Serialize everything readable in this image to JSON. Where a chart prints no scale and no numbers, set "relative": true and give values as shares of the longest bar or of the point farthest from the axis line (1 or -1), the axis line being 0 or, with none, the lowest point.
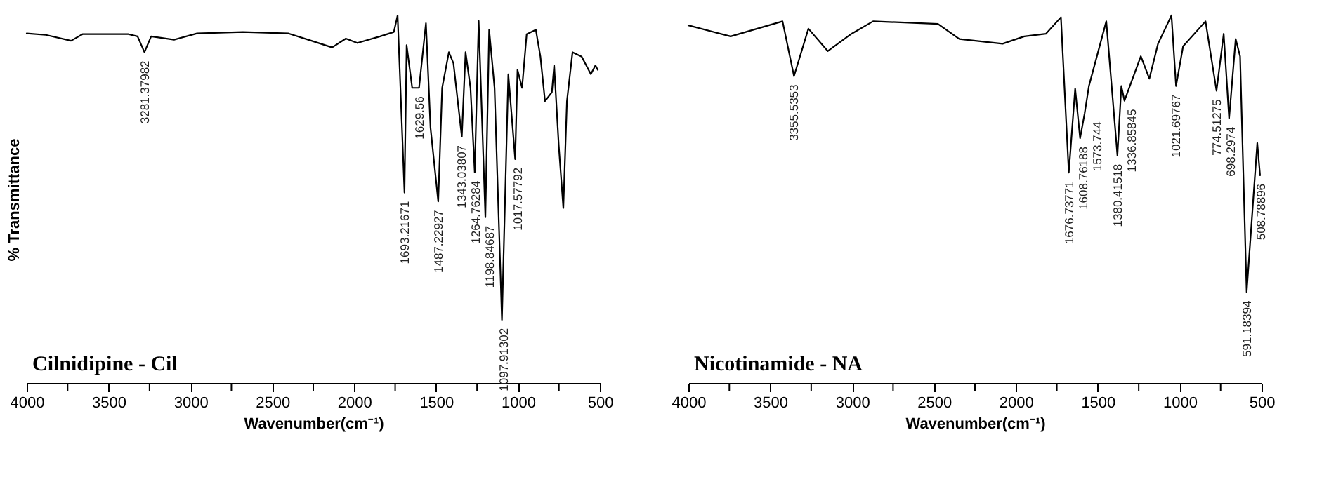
{
  "chart_data": [
    {
      "type": "line",
      "title": "Cilnidipine - Cil",
      "xlabel": "Wavenumber(cm⁻¹)",
      "ylabel": "% Transmittance",
      "relative": true,
      "color": "#000000",
      "xlim": [
        4000,
        500
      ],
      "xticks": [
        4000,
        {
          "value": 3750,
          "label": null
        },
        3500,
        {
          "value": 3250,
          "label": null
        },
        3000,
        {
          "value": 2750,
          "label": null
        },
        2500,
        {
          "value": 2250,
          "label": null
        },
        2000,
        {
          "value": 1750,
          "label": null
        },
        1500,
        {
          "value": 1250,
          "label": null
        },
        1000,
        {
          "value": 750,
          "label": null
        },
        500
      ],
      "x": [
        4000,
        3883,
        3729,
        3659,
        3379,
        3323,
        3281,
        3240,
        3100,
        2960,
        2680,
        2401,
        2261,
        2135,
        2051,
        1981,
        1842,
        1758,
        1735,
        1693,
        1680,
        1646,
        1604,
        1562,
        1534,
        1487,
        1463,
        1422,
        1394,
        1343,
        1320,
        1290,
        1264,
        1240,
        1199,
        1176,
        1143,
        1098,
        1059,
        1017,
        1003,
        975,
        947,
        891,
        863,
        835,
        793,
        779,
        751,
        723,
        701,
        667,
        611,
        555,
        527,
        513
      ],
      "values": [
        0.951,
        0.947,
        0.931,
        0.949,
        0.949,
        0.943,
        0.9,
        0.943,
        0.934,
        0.951,
        0.955,
        0.951,
        0.931,
        0.913,
        0.937,
        0.925,
        0.943,
        0.955,
        1.0,
        0.518,
        0.919,
        0.803,
        0.803,
        0.979,
        0.694,
        0.494,
        0.803,
        0.9,
        0.87,
        0.67,
        0.9,
        0.803,
        0.573,
        0.985,
        0.451,
        0.961,
        0.803,
        0.172,
        0.84,
        0.609,
        0.852,
        0.803,
        0.949,
        0.961,
        0.888,
        0.767,
        0.791,
        0.864,
        0.646,
        0.476,
        0.767,
        0.9,
        0.888,
        0.84,
        0.864,
        0.852
      ],
      "annotations": [
        {
          "text": "3281.37982",
          "x": 3281,
          "y": 0.9
        },
        {
          "text": "1693.21671",
          "x": 1693,
          "y": 0.518
        },
        {
          "text": "1629.56",
          "x": 1604,
          "y": 0.803
        },
        {
          "text": "1487.22927",
          "x": 1487,
          "y": 0.494
        },
        {
          "text": "1343.03807",
          "x": 1343,
          "y": 0.67
        },
        {
          "text": "1264.76284",
          "x": 1264,
          "y": 0.573
        },
        {
          "text": "1198.84687",
          "x": 1199,
          "y": 0.451
        },
        {
          "text": "1097.91302",
          "x": 1098,
          "y": 0.172
        },
        {
          "text": "1017.57792",
          "x": 1017,
          "y": 0.609
        }
      ]
    },
    {
      "type": "line",
      "title": "Nicotinamide - NA",
      "xlabel": "Wavenumber(cm⁻¹)",
      "relative": true,
      "color": "#000000",
      "xlim": [
        4000,
        500
      ],
      "xticks": [
        4000,
        {
          "value": 3750,
          "label": null
        },
        3500,
        {
          "value": 3250,
          "label": null
        },
        3000,
        {
          "value": 2750,
          "label": null
        },
        2500,
        {
          "value": 2250,
          "label": null
        },
        2000,
        {
          "value": 1750,
          "label": null
        },
        1500,
        {
          "value": 1250,
          "label": null
        },
        1000,
        {
          "value": 750,
          "label": null
        },
        500
      ],
      "x": [
        4000,
        3742,
        3425,
        3355,
        3267,
        3149,
        3004,
        2872,
        2476,
        2345,
        2081,
        1949,
        1817,
        1725,
        1677,
        1638,
        1608,
        1580,
        1554,
        1448,
        1380,
        1356,
        1337,
        1237,
        1185,
        1132,
        1050,
        1022,
        979,
        842,
        775,
        731,
        698,
        658,
        631,
        591,
        526,
        509
      ],
      "values": [
        0.973,
        0.943,
        0.984,
        0.835,
        0.964,
        0.903,
        0.95,
        0.984,
        0.977,
        0.936,
        0.923,
        0.943,
        0.95,
        0.995,
        0.572,
        0.801,
        0.666,
        0.734,
        0.808,
        0.984,
        0.619,
        0.808,
        0.768,
        0.889,
        0.828,
        0.923,
        1.0,
        0.808,
        0.916,
        0.984,
        0.795,
        0.95,
        0.72,
        0.936,
        0.889,
        0.247,
        0.653,
        0.565
      ],
      "annotations": [
        {
          "text": "3355.5353",
          "x": 3355,
          "y": 0.835
        },
        {
          "text": "1676.73771",
          "x": 1677,
          "y": 0.572
        },
        {
          "text": "1608.76188",
          "x": 1608,
          "y": 0.666
        },
        {
          "text": "1573.744",
          "x": 1580,
          "y": 0.734
        },
        {
          "text": "1380.41518",
          "x": 1380,
          "y": 0.619
        },
        {
          "text": "1336.85845",
          "x": 1337,
          "y": 0.768
        },
        {
          "text": "1021.69767",
          "x": 1022,
          "y": 0.808
        },
        {
          "text": "774.51275",
          "x": 775,
          "y": 0.795
        },
        {
          "text": "698.2974",
          "x": 698,
          "y": 0.72
        },
        {
          "text": "591.18394",
          "x": 591,
          "y": 0.247
        },
        {
          "text": "508.78896",
          "x": 509,
          "y": 0.565
        }
      ]
    }
  ]
}
